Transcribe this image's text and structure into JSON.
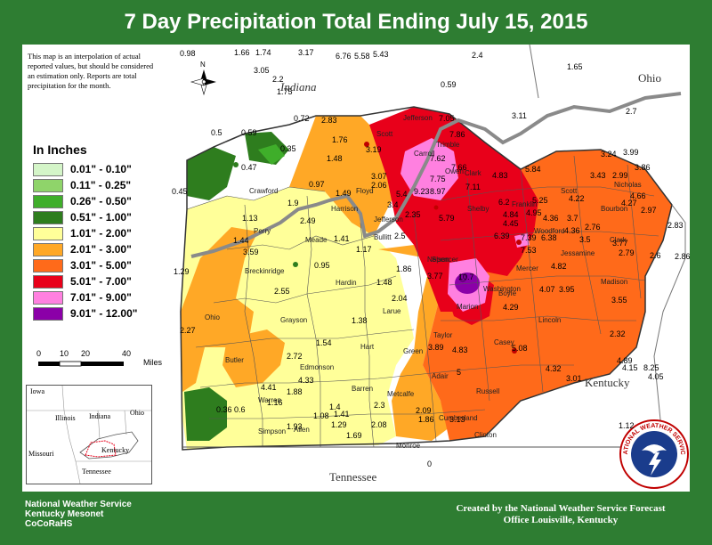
{
  "title": "7 Day Precipitation Total Ending July 15, 2015",
  "disclaimer": "This map is an interpolation of actual reported values, but should be considered an estimation only. Reports are total precipitation for the month.",
  "legend": {
    "title": "In Inches",
    "items": [
      {
        "label": "0.01\" - 0.10\"",
        "color": "#d4f5c8"
      },
      {
        "label": "0.11\" - 0.25\"",
        "color": "#8fd46a"
      },
      {
        "label": "0.26\" - 0.50\"",
        "color": "#3fae2a"
      },
      {
        "label": "0.51\" - 1.00\"",
        "color": "#2e7d1e"
      },
      {
        "label": "1.01\" - 2.00\"",
        "color": "#ffff99"
      },
      {
        "label": "2.01\" - 3.00\"",
        "color": "#ffa826"
      },
      {
        "label": "3.01\" - 5.00\"",
        "color": "#ff6a1a"
      },
      {
        "label": "5.01\" - 7.00\"",
        "color": "#e8001a"
      },
      {
        "label": "7.01\" - 9.00\"",
        "color": "#ff80e0"
      },
      {
        "label": "9.01\" - 12.00\"",
        "color": "#8b00a8"
      }
    ]
  },
  "scale": {
    "ticks": [
      "0",
      "10",
      "20",
      "40"
    ],
    "unit": "Miles"
  },
  "north": {
    "label": "N"
  },
  "states": {
    "indiana": "Indiana",
    "ohio": "Ohio",
    "kentucky": "Kentucky",
    "tennessee": "Tennessee"
  },
  "inset": {
    "labels": [
      "Iowa",
      "Illinois",
      "Indiana",
      "Ohio",
      "Missouri",
      "Kentucky",
      "Tennessee"
    ]
  },
  "footer_left": [
    "National Weather Service",
    "Kentucky Mesonet",
    "CoCoRaHS"
  ],
  "footer_right": [
    "Created by the National Weather Service Forecast",
    "Office Louisville, Kentucky"
  ],
  "logo_text": "NATIONAL WEATHER SERVICE",
  "counties": [
    "Jefferson",
    "Scott",
    "Trimble",
    "Carroll",
    "Owen",
    "Clark",
    "Floyd",
    "Harrison",
    "Crawford",
    "Perry",
    "Meade",
    "Jefferson",
    "Bullitt",
    "Spencer",
    "Shelby",
    "Franklin",
    "Scott",
    "Bourbon",
    "Nicholas",
    "Woodford",
    "Jessamine",
    "Clark",
    "Madison",
    "Mercer",
    "Boyle",
    "Nelson",
    "Washington",
    "Marion",
    "Larue",
    "Hardin",
    "Breckinridge",
    "Ohio",
    "Grayson",
    "Hart",
    "Taylor",
    "Casey",
    "Lincoln",
    "Green",
    "Adair",
    "Russell",
    "Edmonson",
    "Butler",
    "Warren",
    "Barren",
    "Metcalfe",
    "Simpson",
    "Allen",
    "Monroe",
    "Clinton",
    "Cumberland"
  ],
  "values": [
    "0.98",
    "1.66",
    "1.74",
    "3.17",
    "6.76",
    "5.58",
    "5.43",
    "2.4",
    "3.05",
    "2.2",
    "1.75",
    "0.59",
    "1.65",
    "2.7",
    "0.72",
    "2.83",
    "0.5",
    "0.59",
    "0.35",
    "3.11",
    "7.05",
    "7.86",
    "3.19",
    "1.76",
    "0.47",
    "1.48",
    "7.62",
    "7.66",
    "3.07",
    "7.75",
    "4.83",
    "5.84",
    "3.24",
    "3.99",
    "0.45",
    "0.97",
    "1.49",
    "2.06",
    "5.4",
    "9.23",
    "8.97",
    "7.11",
    "3.43",
    "2.99",
    "3.86",
    "1.9",
    "1.13",
    "3.4",
    "2.35",
    "6.2",
    "4.45",
    "5.25",
    "4.22",
    "4.66",
    "2.49",
    "5.79",
    "4.84",
    "4.95",
    "4.36",
    "3.7",
    "4.27",
    "2.97",
    "1.44",
    "1.41",
    "2.5",
    "6.39",
    "7.39",
    "6.38",
    "4.36",
    "2.76",
    "3.59",
    "1.17",
    "7.53",
    "3.5",
    "2.83",
    "0.95",
    "1.86",
    "3.77",
    "4.82",
    "3.77",
    "2.79",
    "2.6",
    "2.86",
    "1.29",
    "2.55",
    "1.48",
    "10.7",
    "4.07",
    "3.95",
    "3.55",
    "2.04",
    "4.29",
    "2.27",
    "1.38",
    "1.54",
    "3.89",
    "4.83",
    "5.08",
    "2.32",
    "2.72",
    "4.89",
    "4.32",
    "3.01",
    "4.15",
    "8.25",
    "4.05",
    "4.41",
    "1.88",
    "4.33",
    "5",
    "0.36",
    "0.6",
    "1.16",
    "1.4",
    "1.41",
    "2.3",
    "2.09",
    "1.08",
    "1.86",
    "3.13",
    "1.93",
    "1.29",
    "2.08",
    "1.69",
    "1.12",
    "0"
  ]
}
